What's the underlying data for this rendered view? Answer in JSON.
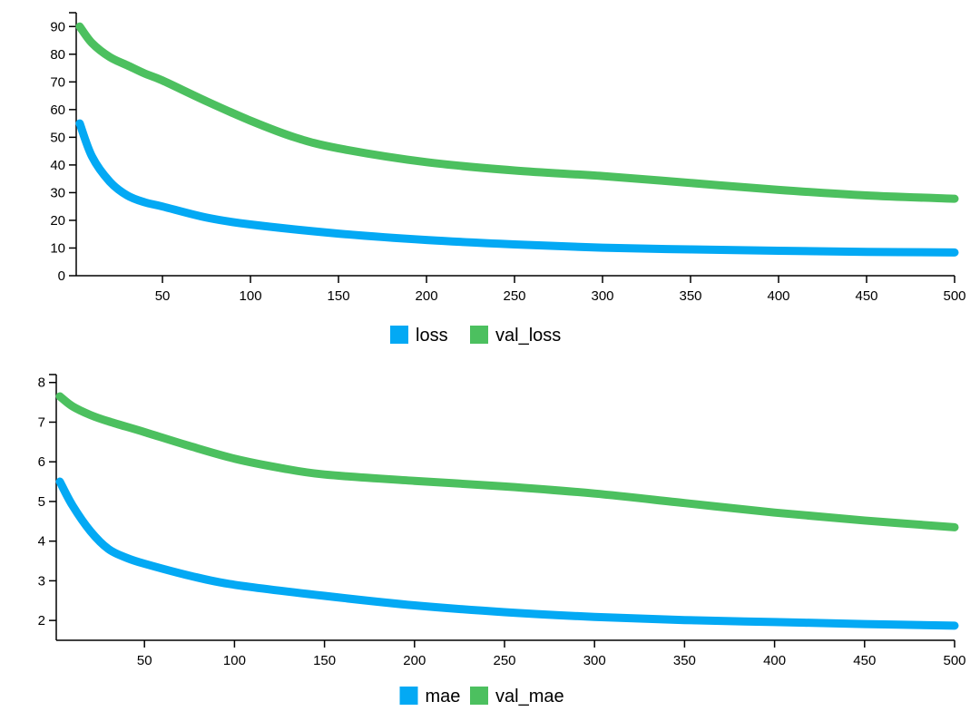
{
  "colors": {
    "loss": "#03a9f4",
    "val": "#4cc05f"
  },
  "chart_data": [
    {
      "type": "line",
      "title": "",
      "xlabel": "",
      "ylabel": "",
      "xlim": [
        1,
        500
      ],
      "ylim": [
        0,
        95
      ],
      "grid": false,
      "legend_position": "bottom-center",
      "x_ticks": [
        "50",
        "100",
        "150",
        "200",
        "250",
        "300",
        "350",
        "400",
        "450",
        "500"
      ],
      "y_ticks": [
        "0",
        "10",
        "20",
        "30",
        "40",
        "50",
        "60",
        "70",
        "80",
        "90"
      ],
      "series": [
        {
          "name": "loss",
          "color": "#03a9f4",
          "x": [
            3,
            10,
            20,
            30,
            40,
            50,
            75,
            100,
            150,
            200,
            250,
            300,
            350,
            400,
            450,
            500
          ],
          "y": [
            55,
            43,
            34,
            29,
            26.5,
            25,
            21,
            18.5,
            15.2,
            12.9,
            11.3,
            10.1,
            9.5,
            9.0,
            8.6,
            8.4
          ]
        },
        {
          "name": "val_loss",
          "color": "#4cc05f",
          "x": [
            3,
            10,
            20,
            30,
            40,
            50,
            75,
            100,
            125,
            150,
            200,
            250,
            300,
            350,
            400,
            450,
            500
          ],
          "y": [
            90,
            84,
            79,
            76,
            73,
            70.5,
            63,
            56,
            50,
            46,
            41,
            38,
            36,
            33.5,
            31,
            29,
            27.8
          ]
        }
      ]
    },
    {
      "type": "line",
      "title": "",
      "xlabel": "",
      "ylabel": "",
      "xlim": [
        1,
        500
      ],
      "ylim": [
        1.5,
        8.2
      ],
      "grid": false,
      "legend_position": "bottom-center",
      "x_ticks": [
        "50",
        "100",
        "150",
        "200",
        "250",
        "300",
        "350",
        "400",
        "450",
        "500"
      ],
      "y_ticks": [
        "2",
        "3",
        "4",
        "5",
        "6",
        "7",
        "8"
      ],
      "series": [
        {
          "name": "mae",
          "color": "#03a9f4",
          "x": [
            3,
            10,
            20,
            30,
            40,
            50,
            75,
            100,
            150,
            200,
            250,
            300,
            350,
            400,
            450,
            500
          ],
          "y": [
            5.5,
            4.9,
            4.25,
            3.8,
            3.58,
            3.43,
            3.13,
            2.9,
            2.62,
            2.38,
            2.21,
            2.09,
            2.01,
            1.96,
            1.91,
            1.87
          ]
        },
        {
          "name": "val_mae",
          "color": "#4cc05f",
          "x": [
            3,
            10,
            20,
            30,
            50,
            75,
            100,
            125,
            150,
            200,
            250,
            300,
            350,
            400,
            450,
            500
          ],
          "y": [
            7.65,
            7.4,
            7.18,
            7.02,
            6.75,
            6.4,
            6.08,
            5.85,
            5.68,
            5.52,
            5.38,
            5.2,
            4.96,
            4.72,
            4.52,
            4.35
          ]
        }
      ]
    }
  ]
}
